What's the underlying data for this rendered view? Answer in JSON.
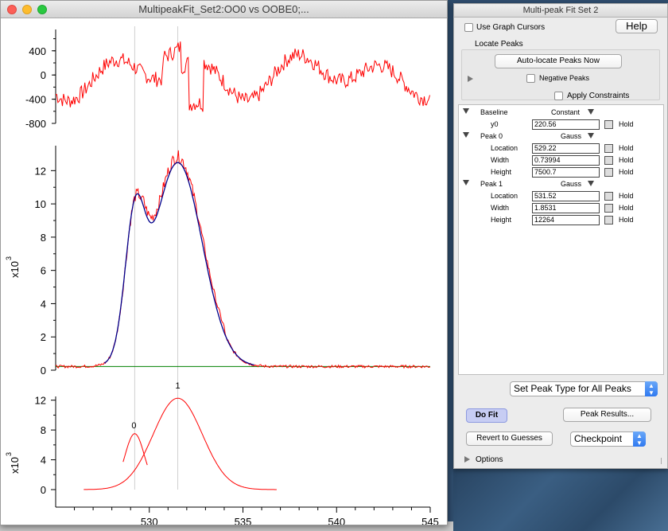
{
  "graph_window": {
    "title": "MultipeakFit_Set2:OO0 vs OOBE0;...",
    "traffic_lights": [
      "close",
      "minimize",
      "maximize"
    ]
  },
  "panel": {
    "title": "Multi-peak Fit Set 2",
    "use_graph_cursors": "Use Graph Cursors",
    "help": "Help",
    "locate_peaks_heading": "Locate Peaks",
    "auto_locate": "Auto-locate Peaks Now",
    "negative_peaks": "Negative Peaks",
    "apply_constraints": "Apply Constraints",
    "tree": {
      "baseline_label": "Baseline",
      "baseline_type": "Constant",
      "y0_label": "y0",
      "y0_value": "220.56",
      "peak0_label": "Peak 0",
      "peak0_type": "Gauss",
      "peak0_location": "529.22",
      "peak0_width": "0.73994",
      "peak0_height": "7500.7",
      "peak1_label": "Peak 1",
      "peak1_type": "Gauss",
      "peak1_location": "531.52",
      "peak1_width": "1.8531",
      "peak1_height": "12264",
      "location_label": "Location",
      "width_label": "Width",
      "height_label": "Height",
      "hold_label": "Hold"
    },
    "set_peak_type": "Set Peak Type for All Peaks",
    "do_fit": "Do Fit",
    "peak_results": "Peak Results...",
    "revert": "Revert to Guesses",
    "checkpoint": "Checkpoint",
    "options": "Options"
  },
  "chart_data": [
    {
      "type": "line",
      "name": "residual",
      "yticks": [
        "400",
        "0",
        "-400",
        "-800"
      ],
      "ylim": [
        -800,
        700
      ],
      "xlim": [
        525,
        545
      ],
      "series": [
        {
          "color": "#ff0000"
        }
      ]
    },
    {
      "type": "line",
      "name": "fit",
      "ylabel": "x10",
      "ylabel_exp": "3",
      "yticks": [
        "12",
        "10",
        "8",
        "6",
        "4",
        "2",
        "0"
      ],
      "ylim": [
        0,
        13.5
      ],
      "xlim": [
        525,
        545
      ],
      "baseline": 0.22056,
      "peaks": [
        {
          "location": 529.22,
          "width": 0.73994,
          "height": 7.5007
        },
        {
          "location": 531.52,
          "width": 1.8531,
          "height": 12.264
        }
      ],
      "series": [
        {
          "color": "#ff0000"
        },
        {
          "color": "#00008b"
        },
        {
          "color": "#008000"
        }
      ]
    },
    {
      "type": "line",
      "name": "components",
      "ylabel": "x10",
      "ylabel_exp": "3",
      "yticks": [
        "12",
        "8",
        "4",
        "0"
      ],
      "ylim": [
        0,
        12.5
      ],
      "xticks": [
        "530",
        "535",
        "540",
        "545"
      ],
      "xlim": [
        525,
        545
      ],
      "peak_labels": [
        "0",
        "1"
      ],
      "series": [
        {
          "color": "#ff0000"
        }
      ]
    }
  ]
}
